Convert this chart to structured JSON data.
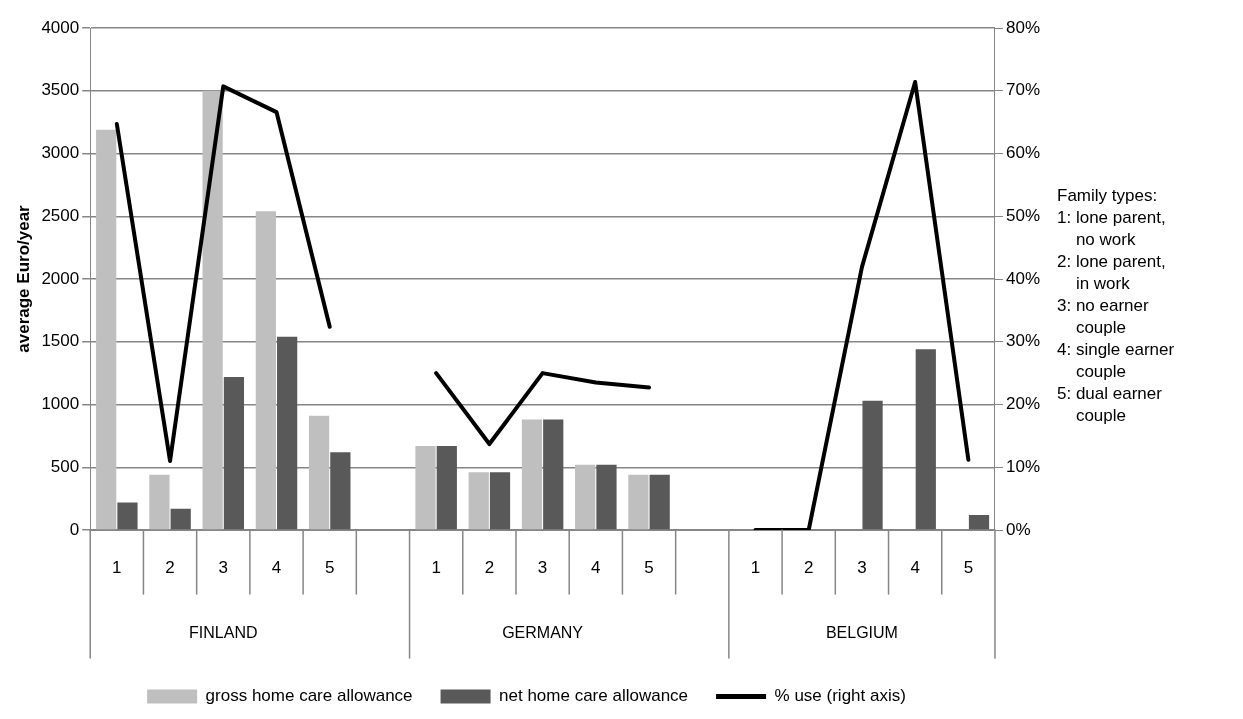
{
  "chart_data": {
    "type": "bar",
    "ylabel": "average Euro/year",
    "categories": [
      "1",
      "2",
      "3",
      "4",
      "5",
      null,
      "1",
      "2",
      "3",
      "4",
      "5",
      null,
      "1",
      "2",
      "3",
      "4",
      "5"
    ],
    "series": [
      {
        "name": "gross home care allowance",
        "color": "#bfbfbf",
        "values": [
          3190,
          440,
          3500,
          2540,
          910,
          null,
          670,
          460,
          880,
          520,
          440,
          null,
          null,
          null,
          null,
          null,
          null
        ]
      },
      {
        "name": "net home care allowance",
        "color": "#595959",
        "values": [
          220,
          170,
          1220,
          1540,
          620,
          null,
          670,
          460,
          880,
          520,
          440,
          null,
          0,
          0,
          1030,
          1440,
          120
        ]
      },
      {
        "name": "% use (right axis)",
        "type": "line",
        "axis": "y2",
        "color": "#000000",
        "values": [
          64.7,
          11,
          70.7,
          66.6,
          32.4,
          null,
          25,
          13.7,
          25,
          23.5,
          22.7,
          null,
          0,
          0,
          41.9,
          71.4,
          11.2
        ]
      }
    ],
    "ylim": [
      0,
      4000
    ],
    "yticks": [
      0,
      500,
      1000,
      1500,
      2000,
      2500,
      3000,
      3500,
      4000
    ],
    "y2lim": [
      0,
      80
    ],
    "y2ticks": [
      {
        "value": 0,
        "label": "0%"
      },
      {
        "value": 10,
        "label": "10%"
      },
      {
        "value": 20,
        "label": "20%"
      },
      {
        "value": 30,
        "label": "30%"
      },
      {
        "value": 40,
        "label": "40%"
      },
      {
        "value": 50,
        "label": "50%"
      },
      {
        "value": 60,
        "label": "60%"
      },
      {
        "value": 70,
        "label": "70%"
      },
      {
        "value": 80,
        "label": "80%"
      }
    ],
    "grid": "y",
    "legend": "bottom",
    "marker": "none",
    "line_style": "solid",
    "annotations": [
      "FINLAND",
      "GERMANY",
      "BELGIUM",
      "Family types:\n1: lone parent,\n    no work\n2: lone parent,\n    in work\n3: no earner\n    couple\n4: single earner\n    couple\n5: dual earner\n    couple"
    ]
  }
}
